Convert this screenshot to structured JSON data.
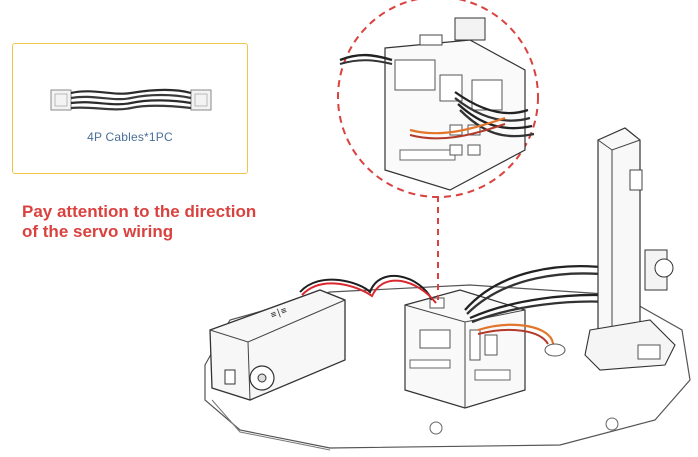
{
  "parts_box": {
    "label": "4P Cables*1PC",
    "border_color": "#f0c64a",
    "label_color": "#4a6f98"
  },
  "note": {
    "line1": "Pay attention to the direction",
    "line2": "of the servo wiring",
    "color": "#d9423f"
  },
  "illustration": {
    "callout_circle_color": "#d9423f",
    "icons": [
      "4p-cable-icon",
      "servo-icon",
      "control-board-icon",
      "camera-mount-icon"
    ]
  }
}
